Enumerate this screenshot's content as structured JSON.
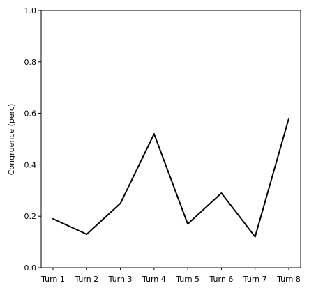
{
  "chart_data": {
    "type": "line",
    "title": "",
    "xlabel": "",
    "ylabel": "Congruence (perc)",
    "categories": [
      "Turn 1",
      "Turn 2",
      "Turn 3",
      "Turn 4",
      "Turn 5",
      "Turn 6",
      "Turn 7",
      "Turn 8"
    ],
    "series": [
      {
        "values": [
          0.19,
          0.13,
          0.25,
          0.52,
          0.17,
          0.29,
          0.12,
          0.58
        ],
        "color": "#000000"
      }
    ],
    "ylim": [
      0,
      1
    ],
    "yticks": [
      "0.0",
      "0.2",
      "0.4",
      "0.6",
      "0.8",
      "1.0"
    ],
    "grid": false,
    "legend": "none"
  }
}
